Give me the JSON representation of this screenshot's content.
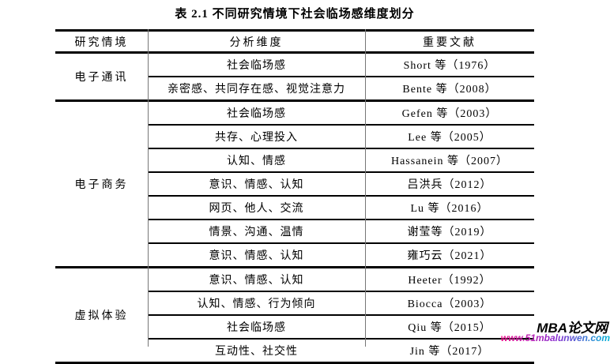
{
  "title": "表 2.1  不同研究情境下社会临场感维度划分",
  "table": {
    "headers": [
      "研究情境",
      "分析维度",
      "重要文献"
    ],
    "groups": [
      {
        "context": "电子通讯",
        "rows": [
          {
            "dimension": "社会临场感",
            "reference": "Short 等（1976）"
          },
          {
            "dimension": "亲密感、共同存在感、视觉注意力",
            "reference": "Bente 等（2008）"
          }
        ]
      },
      {
        "context": "电子商务",
        "rows": [
          {
            "dimension": "社会临场感",
            "reference": "Gefen 等（2003）"
          },
          {
            "dimension": "共存、心理投入",
            "reference": "Lee 等（2005）"
          },
          {
            "dimension": "认知、情感",
            "reference": "Hassanein 等（2007）"
          },
          {
            "dimension": "意识、情感、认知",
            "reference": "吕洪兵（2012）"
          },
          {
            "dimension": "网页、他人、交流",
            "reference": "Lu 等（2016）"
          },
          {
            "dimension": "情景、沟通、温情",
            "reference": "谢莹等（2019）"
          },
          {
            "dimension": "意识、情感、认知",
            "reference": "雍巧云（2021）"
          }
        ]
      },
      {
        "context": "虚拟体验",
        "rows": [
          {
            "dimension": "意识、情感、认知",
            "reference": "Heeter（1992）"
          },
          {
            "dimension": "认知、情感、行为倾向",
            "reference": "Biocca（2003）"
          },
          {
            "dimension": "社会临场感",
            "reference": "Qiu 等（2015）"
          },
          {
            "dimension": "互动性、社交性",
            "reference": "Jin 等（2017）"
          }
        ]
      }
    ]
  },
  "watermark": {
    "brand": "MBA论文网",
    "url": "www.51mbalunwen.com"
  },
  "colors": {
    "border": "#000000",
    "divider": "#777777",
    "url_gradient_start": "#f0148e",
    "url_gradient_mid": "#8a2bd0",
    "url_gradient_end": "#00b6d8"
  }
}
